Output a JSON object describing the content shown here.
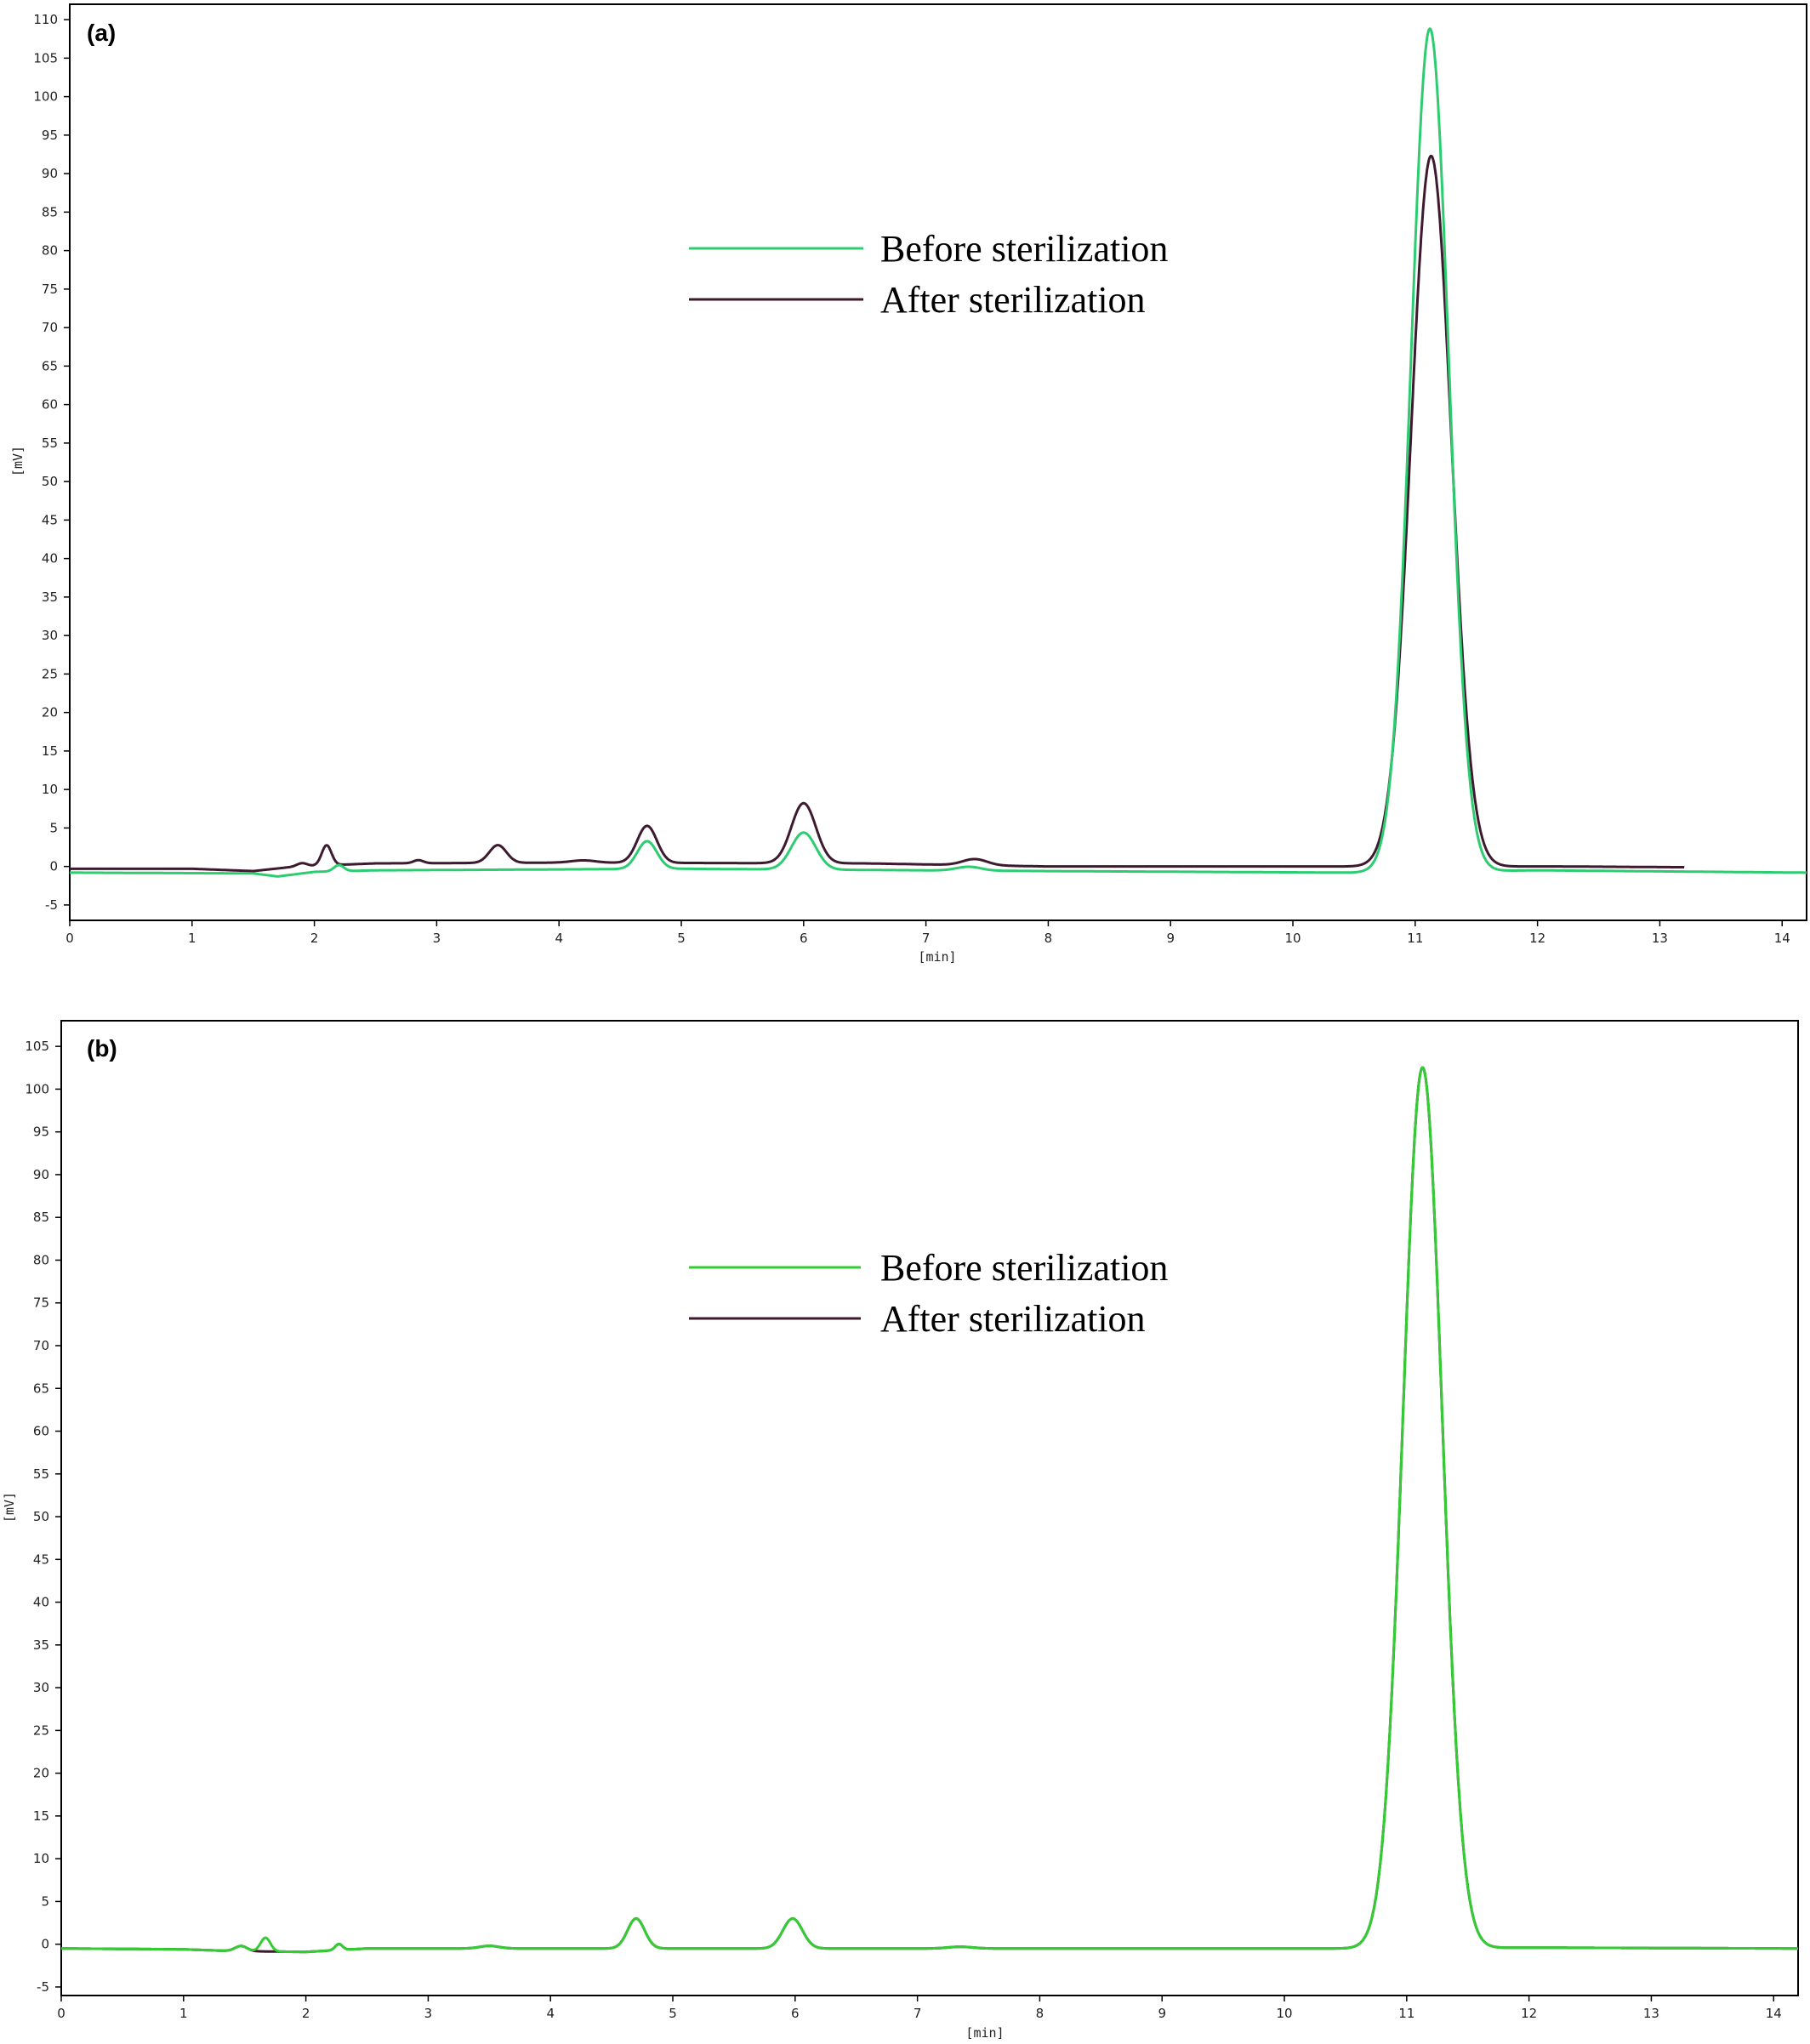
{
  "chart_data": [
    {
      "type": "line",
      "panel_label": "(a)",
      "xlabel": "[min]",
      "ylabel": "[mV]",
      "xlim": [
        0,
        14.2
      ],
      "ylim": [
        -7,
        112
      ],
      "xticks": [
        0,
        1,
        2,
        3,
        4,
        5,
        6,
        7,
        8,
        9,
        10,
        11,
        12,
        13,
        14
      ],
      "yticks": [
        -5,
        0,
        5,
        10,
        15,
        20,
        25,
        30,
        35,
        40,
        45,
        50,
        55,
        60,
        65,
        70,
        75,
        80,
        85,
        90,
        95,
        100,
        105,
        110
      ],
      "grid": false,
      "legend_position": "upper-center",
      "series": [
        {
          "name": "Before sterilization",
          "color": "#2ecc71",
          "x_range": [
            0,
            14.2
          ],
          "baseline": [
            [
              0,
              -0.8
            ],
            [
              1.5,
              -0.9
            ],
            [
              1.7,
              -1.3
            ],
            [
              2.0,
              -0.7
            ],
            [
              2.5,
              -0.5
            ],
            [
              5.0,
              -0.3
            ],
            [
              8.0,
              -0.6
            ],
            [
              10.5,
              -0.8
            ],
            [
              12.0,
              -0.5
            ],
            [
              14.2,
              -0.8
            ]
          ],
          "peaks": [
            {
              "rt": 2.2,
              "height": 0.8,
              "width": 0.04
            },
            {
              "rt": 4.72,
              "height": 3.6,
              "width": 0.08
            },
            {
              "rt": 6.0,
              "height": 4.8,
              "width": 0.1
            },
            {
              "rt": 7.35,
              "height": 0.5,
              "width": 0.1
            },
            {
              "rt": 11.12,
              "height": 109.5,
              "width": 0.155
            }
          ]
        },
        {
          "name": "After sterilization",
          "color": "#3d1a2e",
          "x_range": [
            0,
            13.2
          ],
          "baseline": [
            [
              0,
              -0.3
            ],
            [
              1.0,
              -0.3
            ],
            [
              1.5,
              -0.6
            ],
            [
              1.85,
              0.0
            ],
            [
              2.5,
              0.4
            ],
            [
              4.0,
              0.5
            ],
            [
              6.5,
              0.4
            ],
            [
              8.0,
              0.0
            ],
            [
              10.6,
              0.0
            ],
            [
              12.2,
              0.0
            ],
            [
              13.2,
              -0.1
            ]
          ],
          "peaks": [
            {
              "rt": 1.9,
              "height": 0.4,
              "width": 0.04
            },
            {
              "rt": 2.1,
              "height": 2.6,
              "width": 0.04
            },
            {
              "rt": 2.85,
              "height": 0.4,
              "width": 0.04
            },
            {
              "rt": 3.5,
              "height": 2.3,
              "width": 0.07
            },
            {
              "rt": 4.2,
              "height": 0.3,
              "width": 0.1
            },
            {
              "rt": 4.72,
              "height": 4.8,
              "width": 0.08
            },
            {
              "rt": 6.0,
              "height": 7.8,
              "width": 0.1
            },
            {
              "rt": 7.4,
              "height": 0.8,
              "width": 0.1
            },
            {
              "rt": 11.13,
              "height": 92.3,
              "width": 0.165
            }
          ]
        }
      ]
    },
    {
      "type": "line",
      "panel_label": "(b)",
      "xlabel": "[min]",
      "ylabel": "[mV]",
      "xlim": [
        0,
        14.2
      ],
      "ylim": [
        -6,
        108
      ],
      "xticks": [
        0,
        1,
        2,
        3,
        4,
        5,
        6,
        7,
        8,
        9,
        10,
        11,
        12,
        13,
        14
      ],
      "yticks": [
        -5,
        0,
        5,
        10,
        15,
        20,
        25,
        30,
        35,
        40,
        45,
        50,
        55,
        60,
        65,
        70,
        75,
        80,
        85,
        90,
        95,
        100,
        105
      ],
      "grid": false,
      "legend_position": "upper-center",
      "series": [
        {
          "name": "Before sterilization",
          "color": "#33cc33",
          "x_range": [
            0,
            14.2
          ],
          "baseline": [
            [
              0,
              -0.5
            ],
            [
              1.0,
              -0.6
            ],
            [
              1.4,
              -0.8
            ],
            [
              2.0,
              -0.9
            ],
            [
              2.5,
              -0.5
            ],
            [
              4.0,
              -0.5
            ],
            [
              8.0,
              -0.5
            ],
            [
              10.6,
              -0.5
            ],
            [
              12.0,
              -0.4
            ],
            [
              14.2,
              -0.5
            ]
          ],
          "peaks": [
            {
              "rt": 1.47,
              "height": 0.6,
              "width": 0.05
            },
            {
              "rt": 1.67,
              "height": 1.6,
              "width": 0.04
            },
            {
              "rt": 2.27,
              "height": 0.7,
              "width": 0.03
            },
            {
              "rt": 3.5,
              "height": 0.3,
              "width": 0.08
            },
            {
              "rt": 4.7,
              "height": 3.5,
              "width": 0.07
            },
            {
              "rt": 5.98,
              "height": 3.5,
              "width": 0.08
            },
            {
              "rt": 7.35,
              "height": 0.2,
              "width": 0.1
            },
            {
              "rt": 11.13,
              "height": 103.0,
              "width": 0.16
            }
          ]
        },
        {
          "name": "After sterilization",
          "color": "#3d1a2e",
          "x_range": [
            0,
            14.2
          ],
          "baseline": [
            [
              0,
              -0.5
            ],
            [
              1.0,
              -0.6
            ],
            [
              1.4,
              -0.8
            ],
            [
              2.0,
              -0.9
            ],
            [
              2.5,
              -0.5
            ],
            [
              4.0,
              -0.5
            ],
            [
              8.0,
              -0.5
            ],
            [
              10.6,
              -0.5
            ],
            [
              12.0,
              -0.4
            ],
            [
              14.2,
              -0.5
            ]
          ],
          "peaks": [
            {
              "rt": 1.47,
              "height": 0.6,
              "width": 0.05
            },
            {
              "rt": 2.27,
              "height": 0.7,
              "width": 0.03
            },
            {
              "rt": 3.5,
              "height": 0.3,
              "width": 0.08
            },
            {
              "rt": 4.7,
              "height": 3.5,
              "width": 0.07
            },
            {
              "rt": 5.98,
              "height": 3.5,
              "width": 0.08
            },
            {
              "rt": 7.35,
              "height": 0.2,
              "width": 0.1
            },
            {
              "rt": 11.13,
              "height": 103.0,
              "width": 0.16
            }
          ]
        }
      ]
    }
  ]
}
